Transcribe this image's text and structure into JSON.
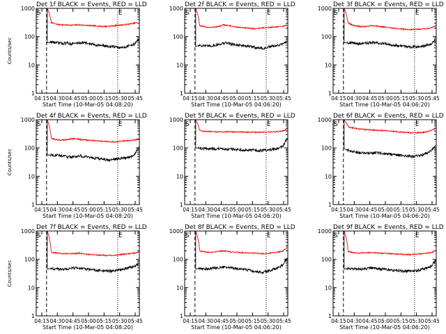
{
  "chart_data": [
    {
      "type": "line",
      "title": "Det 1f BLACK = Events, RED = LLD",
      "ylabel": "Counts/sec",
      "xlabel": "Start Time (10-Mar-05 04:08:20)",
      "x_ticks": [
        "04:15",
        "04:30",
        "04:45",
        "05:00",
        "05:15",
        "05:30",
        "05:45"
      ],
      "y_ticks": [
        "1",
        "10",
        "100",
        "1000"
      ],
      "ylim": [
        1,
        1000
      ],
      "y_scale": "log",
      "markers": [
        "S",
        "E"
      ],
      "series": [
        {
          "color": "#ff0000",
          "values": [
            1000,
            320,
            280,
            265,
            262,
            258,
            255,
            258,
            262,
            255,
            250,
            245,
            240,
            235,
            232,
            230,
            238,
            245,
            255,
            260,
            270,
            285,
            300,
            310
          ]
        },
        {
          "color": "#000000",
          "values": [
            60,
            65,
            62,
            60,
            58,
            60,
            55,
            58,
            60,
            62,
            58,
            55,
            52,
            50,
            48,
            46,
            45,
            44,
            40,
            42,
            45,
            50,
            55,
            80
          ]
        }
      ]
    },
    {
      "type": "line",
      "title": "Det 2f BLACK = Events, RED = LLD",
      "ylabel": "",
      "xlabel": "Start Time (10-Mar-05 04:06:20)",
      "x_ticks": [
        "04:15",
        "04:30",
        "04:45",
        "05:00",
        "05:15",
        "05:30",
        "05:45"
      ],
      "y_ticks": [
        "1",
        "10",
        "100",
        "1000"
      ],
      "ylim": [
        1,
        1000
      ],
      "y_scale": "log",
      "markers": [
        "S",
        "E"
      ],
      "series": [
        {
          "color": "#ff0000",
          "values": [
            1000,
            240,
            225,
            215,
            210,
            220,
            230,
            260,
            250,
            235,
            220,
            215,
            205,
            200,
            195,
            190,
            200,
            205,
            210,
            215,
            220,
            225,
            230,
            260
          ]
        },
        {
          "color": "#000000",
          "values": [
            45,
            50,
            48,
            46,
            48,
            50,
            55,
            58,
            60,
            55,
            52,
            50,
            48,
            46,
            44,
            42,
            40,
            38,
            42,
            45,
            48,
            50,
            55,
            70
          ]
        }
      ]
    },
    {
      "type": "line",
      "title": "Det 3f BLACK = Events, RED = LLD",
      "ylabel": "",
      "xlabel": "Start Time (10-Mar-05 04:06:20)",
      "x_ticks": [
        "04:15",
        "04:30",
        "04:45",
        "05:00",
        "05:15",
        "05:30",
        "05:45"
      ],
      "y_ticks": [
        "1",
        "10",
        "100",
        "1000"
      ],
      "ylim": [
        1,
        1000
      ],
      "y_scale": "log",
      "markers": [
        "S",
        "E"
      ],
      "series": [
        {
          "color": "#ff0000",
          "values": [
            1000,
            300,
            260,
            240,
            230,
            225,
            235,
            245,
            240,
            230,
            220,
            210,
            200,
            195,
            190,
            185,
            180,
            178,
            182,
            185,
            190,
            195,
            205,
            240
          ]
        },
        {
          "color": "#000000",
          "values": [
            60,
            62,
            60,
            58,
            56,
            58,
            60,
            62,
            60,
            58,
            56,
            54,
            52,
            50,
            48,
            46,
            45,
            44,
            45,
            46,
            48,
            50,
            55,
            75
          ]
        }
      ]
    },
    {
      "type": "line",
      "title": "Det 4f BLACK = Events, RED = LLD",
      "ylabel": "Counts/sec",
      "xlabel": "Start Time (10-Mar-05 04:08:20)",
      "x_ticks": [
        "04:15",
        "04:30",
        "04:45",
        "05:00",
        "05:15",
        "05:30",
        "05:45"
      ],
      "y_ticks": [
        "1",
        "10",
        "100",
        "1000"
      ],
      "ylim": [
        1,
        1000
      ],
      "y_scale": "log",
      "markers": [
        "S",
        "E"
      ],
      "series": [
        {
          "color": "#ff0000",
          "values": [
            1000,
            220,
            200,
            190,
            195,
            200,
            210,
            215,
            205,
            195,
            190,
            185,
            180,
            175,
            170,
            168,
            165,
            165,
            170,
            175,
            180,
            185,
            190,
            210
          ]
        },
        {
          "color": "#000000",
          "values": [
            55,
            58,
            56,
            54,
            52,
            50,
            48,
            50,
            52,
            50,
            48,
            46,
            44,
            42,
            40,
            38,
            38,
            40,
            42,
            44,
            46,
            50,
            60,
            110
          ]
        }
      ]
    },
    {
      "type": "line",
      "title": "Det 5f BLACK = Events, RED = LLD",
      "ylabel": "",
      "xlabel": "Start Time (10-Mar-05 04:06:20)",
      "x_ticks": [
        "04:15",
        "04:30",
        "04:45",
        "05:00",
        "05:15",
        "05:30",
        "05:45"
      ],
      "y_ticks": [
        "1",
        "10",
        "100",
        "1000"
      ],
      "ylim": [
        1,
        1000
      ],
      "y_scale": "log",
      "markers": [
        "S",
        "E"
      ],
      "series": [
        {
          "color": "#ff0000",
          "values": [
            1000,
            420,
            390,
            380,
            375,
            372,
            370,
            372,
            374,
            370,
            368,
            366,
            365,
            364,
            362,
            360,
            360,
            362,
            365,
            368,
            370,
            380,
            400,
            450
          ]
        },
        {
          "color": "#000000",
          "values": [
            100,
            98,
            96,
            95,
            94,
            93,
            92,
            92,
            93,
            92,
            90,
            88,
            86,
            85,
            84,
            83,
            82,
            83,
            85,
            88,
            92,
            100,
            115,
            210
          ]
        }
      ]
    },
    {
      "type": "line",
      "title": "Det 6f BLACK = Events, RED = LLD",
      "ylabel": "",
      "xlabel": "Start Time (10-Mar-05 04:06:20)",
      "x_ticks": [
        "04:15",
        "04:30",
        "04:45",
        "05:00",
        "05:15",
        "05:30",
        "05:45"
      ],
      "y_ticks": [
        "1",
        "10",
        "100",
        "1000"
      ],
      "ylim": [
        1,
        1000
      ],
      "y_scale": "log",
      "markers": [
        "S",
        "E"
      ],
      "series": [
        {
          "color": "#ff0000",
          "values": [
            1000,
            560,
            520,
            490,
            470,
            455,
            440,
            430,
            425,
            420,
            410,
            400,
            390,
            380,
            370,
            360,
            350,
            345,
            345,
            350,
            360,
            380,
            420,
            500
          ]
        },
        {
          "color": "#000000",
          "values": [
            95,
            80,
            75,
            70,
            68,
            66,
            65,
            66,
            68,
            66,
            64,
            62,
            60,
            58,
            56,
            54,
            52,
            50,
            52,
            55,
            60,
            68,
            80,
            120
          ]
        }
      ]
    },
    {
      "type": "line",
      "title": "Det 7f BLACK = Events, RED = LLD",
      "ylabel": "Counts/sec",
      "xlabel": "Start Time (10-Mar-05 04:08:20)",
      "x_ticks": [
        "04:15",
        "04:30",
        "04:45",
        "05:00",
        "05:15",
        "05:30",
        "05:45"
      ],
      "y_ticks": [
        "1",
        "10",
        "100",
        "1000"
      ],
      "ylim": [
        1,
        1000
      ],
      "y_scale": "log",
      "markers": [
        "S",
        "E"
      ],
      "series": [
        {
          "color": "#ff0000",
          "values": [
            1000,
            180,
            170,
            165,
            160,
            158,
            155,
            160,
            165,
            158,
            150,
            148,
            145,
            142,
            140,
            138,
            138,
            140,
            145,
            150,
            155,
            160,
            165,
            180
          ]
        },
        {
          "color": "#000000",
          "values": [
            45,
            48,
            46,
            45,
            44,
            46,
            48,
            50,
            48,
            46,
            45,
            44,
            42,
            40,
            40,
            39,
            38,
            40,
            42,
            45,
            48,
            52,
            58,
            70
          ]
        }
      ]
    },
    {
      "type": "line",
      "title": "Det 8f BLACK = Events, RED = LLD",
      "ylabel": "",
      "xlabel": "Start Time (10-Mar-05 04:06:20)",
      "x_ticks": [
        "04:15",
        "04:30",
        "04:45",
        "05:00",
        "05:15",
        "05:30",
        "05:45"
      ],
      "y_ticks": [
        "1",
        "10",
        "100",
        "1000"
      ],
      "ylim": [
        1,
        1000
      ],
      "y_scale": "log",
      "markers": [
        "S",
        "E"
      ],
      "series": [
        {
          "color": "#ff0000",
          "values": [
            1000,
            200,
            185,
            180,
            178,
            185,
            195,
            200,
            190,
            182,
            178,
            175,
            172,
            170,
            168,
            165,
            160,
            158,
            162,
            168,
            175,
            185,
            200,
            260
          ]
        },
        {
          "color": "#000000",
          "values": [
            45,
            48,
            47,
            46,
            48,
            50,
            52,
            54,
            52,
            50,
            48,
            46,
            44,
            42,
            40,
            38,
            36,
            35,
            38,
            42,
            46,
            52,
            65,
            110
          ]
        }
      ]
    },
    {
      "type": "line",
      "title": "Det 9f BLACK = Events, RED = LLD",
      "ylabel": "",
      "xlabel": "Start Time (10-Mar-05 04:06:20)",
      "x_ticks": [
        "04:15",
        "04:30",
        "04:45",
        "05:00",
        "05:15",
        "05:30",
        "05:45"
      ],
      "y_ticks": [
        "1",
        "10",
        "100",
        "1000"
      ],
      "ylim": [
        1,
        1000
      ],
      "y_scale": "log",
      "markers": [
        "S",
        "E"
      ],
      "series": [
        {
          "color": "#ff0000",
          "values": [
            1000,
            190,
            175,
            168,
            165,
            168,
            172,
            175,
            170,
            165,
            162,
            160,
            158,
            155,
            152,
            150,
            148,
            148,
            152,
            156,
            160,
            165,
            170,
            200
          ]
        },
        {
          "color": "#000000",
          "values": [
            45,
            48,
            46,
            45,
            44,
            46,
            48,
            50,
            48,
            46,
            45,
            44,
            42,
            41,
            40,
            39,
            38,
            38,
            40,
            42,
            46,
            50,
            58,
            90
          ]
        }
      ]
    }
  ]
}
